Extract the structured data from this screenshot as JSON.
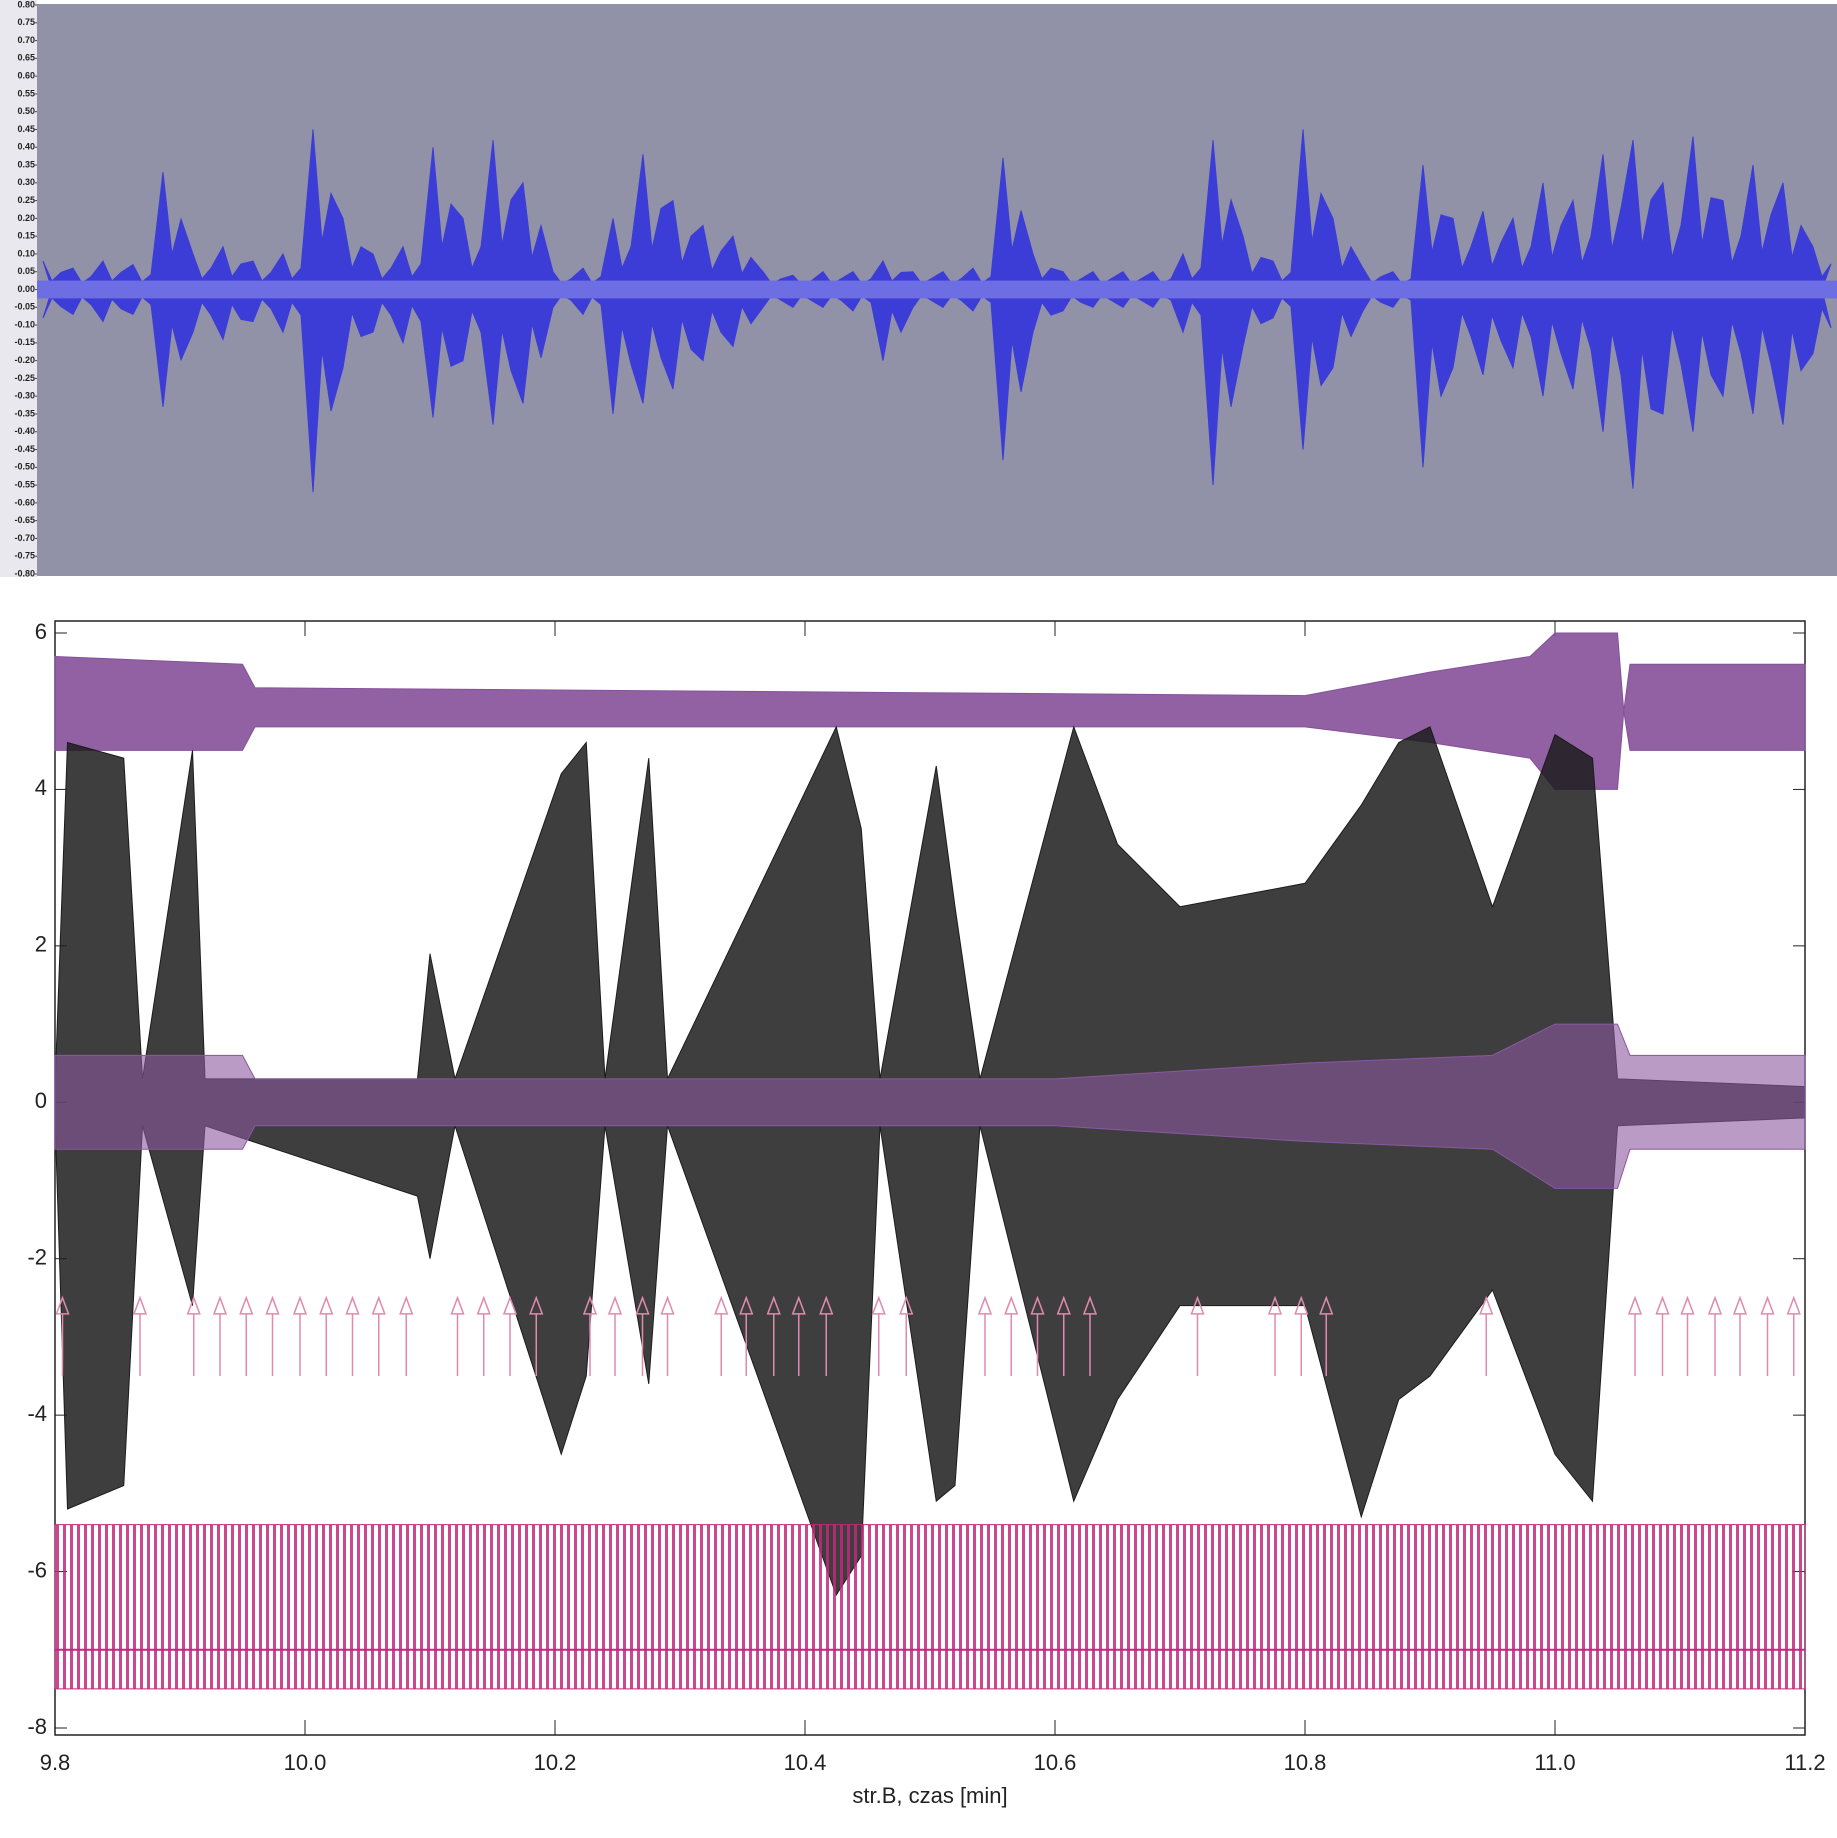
{
  "chart_data": [
    {
      "type": "waveform",
      "ylim": [
        -0.8,
        0.8
      ],
      "yticks": [
        {
          "value": 0.8,
          "label": "0.80"
        },
        {
          "value": 0.75,
          "label": "0.75"
        },
        {
          "value": 0.7,
          "label": "0.70"
        },
        {
          "value": 0.65,
          "label": "0.65"
        },
        {
          "value": 0.6,
          "label": "0.60"
        },
        {
          "value": 0.55,
          "label": "0.55"
        },
        {
          "value": 0.5,
          "label": "0.50"
        },
        {
          "value": 0.45,
          "label": "0.45"
        },
        {
          "value": 0.4,
          "label": "0.40"
        },
        {
          "value": 0.35,
          "label": "0.35"
        },
        {
          "value": 0.3,
          "label": "0.30"
        },
        {
          "value": 0.25,
          "label": "0.25"
        },
        {
          "value": 0.2,
          "label": "0.20"
        },
        {
          "value": 0.15,
          "label": "0.15"
        },
        {
          "value": 0.1,
          "label": "0.10"
        },
        {
          "value": 0.05,
          "label": "0.05"
        },
        {
          "value": 0,
          "label": "0.00"
        },
        {
          "value": -0.05,
          "label": "-0.05"
        },
        {
          "value": -0.1,
          "label": "-0.10"
        },
        {
          "value": -0.15,
          "label": "-0.15"
        },
        {
          "value": -0.2,
          "label": "-0.20"
        },
        {
          "value": -0.25,
          "label": "-0.25"
        },
        {
          "value": -0.3,
          "label": "-0.30"
        },
        {
          "value": -0.35,
          "label": "-0.35"
        },
        {
          "value": -0.4,
          "label": "-0.40"
        },
        {
          "value": -0.45,
          "label": "-0.45"
        },
        {
          "value": -0.5,
          "label": "-0.50"
        },
        {
          "value": -0.55,
          "label": "-0.55"
        },
        {
          "value": -0.6,
          "label": "-0.60"
        },
        {
          "value": -0.65,
          "label": "-0.65"
        },
        {
          "value": -0.7,
          "label": "-0.70"
        },
        {
          "value": -0.75,
          "label": "-0.75"
        },
        {
          "value": -0.8,
          "label": "-0.80"
        }
      ],
      "color": "#3c3cd6",
      "upper": [
        0.08,
        0.06,
        0.08,
        0.07,
        0.33,
        0.1,
        0.12,
        0.08,
        0.1,
        0.45,
        0.2,
        0.1,
        0.12,
        0.4,
        0.2,
        0.42,
        0.3,
        0.05,
        0.06,
        0.2,
        0.38,
        0.25,
        0.18,
        0.15,
        0.05,
        0.04,
        0.05,
        0.05,
        0.08,
        0.05,
        0.05,
        0.06,
        0.37,
        0.1,
        0.05,
        0.05,
        0.05,
        0.05,
        0.1,
        0.42,
        0.15,
        0.08,
        0.45,
        0.2,
        0.06,
        0.05,
        0.35,
        0.2,
        0.22,
        0.2,
        0.3,
        0.25,
        0.38,
        0.42,
        0.3,
        0.43,
        0.25,
        0.35,
        0.3,
        0.12
      ],
      "lower": [
        -0.08,
        -0.07,
        -0.09,
        -0.07,
        -0.33,
        -0.12,
        -0.14,
        -0.09,
        -0.12,
        -0.57,
        -0.22,
        -0.12,
        -0.15,
        -0.36,
        -0.2,
        -0.38,
        -0.32,
        -0.05,
        -0.07,
        -0.35,
        -0.32,
        -0.28,
        -0.2,
        -0.16,
        -0.05,
        -0.05,
        -0.05,
        -0.06,
        -0.2,
        -0.05,
        -0.05,
        -0.06,
        -0.48,
        -0.12,
        -0.06,
        -0.05,
        -0.05,
        -0.05,
        -0.12,
        -0.55,
        -0.16,
        -0.08,
        -0.45,
        -0.22,
        -0.06,
        -0.05,
        -0.5,
        -0.22,
        -0.24,
        -0.22,
        -0.3,
        -0.28,
        -0.4,
        -0.56,
        -0.35,
        -0.4,
        -0.3,
        -0.35,
        -0.38,
        -0.18
      ]
    },
    {
      "type": "traces",
      "xlim": [
        9.8,
        11.2
      ],
      "ylim": [
        -8,
        6
      ],
      "xticks": [
        9.8,
        {
          "value": 10,
          "label": "10.0"
        },
        10.2,
        10.4,
        10.6,
        10.8,
        {
          "value": 11,
          "label": "11.0"
        },
        11.2
      ],
      "yticks": [
        -8,
        -6,
        -4,
        -2,
        0,
        2,
        4,
        6
      ],
      "xlabel": "str.B,  czas [min]",
      "traces": [
        {
          "color": "#86509a",
          "opacity": 0.9,
          "x": [
            9.8,
            9.95,
            9.96,
            10.8,
            10.9,
            10.98,
            11.0,
            11.05,
            11.055,
            11.06,
            11.2
          ],
          "upper": [
            5.7,
            5.6,
            5.3,
            5.2,
            5.5,
            5.7,
            6.0,
            6.0,
            5.0,
            5.6,
            5.6
          ],
          "lower": [
            4.5,
            4.5,
            4.8,
            4.8,
            4.6,
            4.4,
            4.0,
            4.0,
            5.0,
            4.5,
            4.5
          ]
        },
        {
          "color": "#1c1c1c",
          "opacity": 0.85,
          "x": [
            9.8,
            9.81,
            9.855,
            9.87,
            9.91,
            9.92,
            10.09,
            10.1,
            10.12,
            10.205,
            10.225,
            10.24,
            10.275,
            10.29,
            10.425,
            10.445,
            10.46,
            10.505,
            10.52,
            10.54,
            10.615,
            10.65,
            10.7,
            10.8,
            10.845,
            10.875,
            10.9,
            10.95,
            11.0,
            11.03,
            11.05,
            11.2
          ],
          "upper": [
            0.2,
            4.6,
            4.4,
            0.3,
            4.5,
            0.3,
            0.3,
            1.9,
            0.3,
            4.2,
            4.6,
            0.3,
            4.4,
            0.3,
            4.8,
            3.5,
            0.3,
            4.3,
            2.5,
            0.3,
            4.8,
            3.3,
            2.5,
            2.8,
            3.8,
            4.6,
            4.8,
            2.5,
            4.7,
            4.4,
            0.3,
            0.2
          ],
          "lower": [
            -0.2,
            -5.2,
            -4.9,
            -0.3,
            -2.6,
            -0.3,
            -1.2,
            -2.0,
            -0.3,
            -4.5,
            -3.5,
            -0.3,
            -3.6,
            -0.3,
            -6.3,
            -5.8,
            -0.3,
            -5.1,
            -4.9,
            -0.3,
            -5.1,
            -3.8,
            -2.6,
            -2.6,
            -5.3,
            -3.8,
            -3.5,
            -2.4,
            -4.5,
            -5.1,
            -0.3,
            -0.2
          ]
        },
        {
          "color": "#8a58a0",
          "opacity": 0.6,
          "x": [
            9.8,
            9.95,
            9.96,
            10.6,
            10.8,
            10.95,
            11.0,
            11.05,
            11.06,
            11.2
          ],
          "upper": [
            0.6,
            0.6,
            0.3,
            0.3,
            0.5,
            0.6,
            1.0,
            1.0,
            0.6,
            0.6
          ],
          "lower": [
            -0.6,
            -0.6,
            -0.3,
            -0.3,
            -0.5,
            -0.6,
            -1.1,
            -1.1,
            -0.6,
            -0.6
          ]
        },
        {
          "color": "#c2287c",
          "opacity": 0.85,
          "striped": true,
          "x": [
            9.8,
            11.2
          ],
          "upper": [
            -5.4,
            -5.4
          ],
          "lower": [
            -7.5,
            -7.5
          ],
          "baseline": -7
        }
      ],
      "arrows": {
        "color": "#e08aae",
        "from": -3.5,
        "to": -2.5,
        "x": [
          9.806,
          9.868,
          9.911,
          9.932,
          9.953,
          9.974,
          9.996,
          10.017,
          10.038,
          10.059,
          10.081,
          10.122,
          10.143,
          10.164,
          10.185,
          10.228,
          10.248,
          10.27,
          10.29,
          10.333,
          10.353,
          10.375,
          10.395,
          10.417,
          10.459,
          10.481,
          10.544,
          10.565,
          10.586,
          10.607,
          10.628,
          10.714,
          10.776,
          10.797,
          10.817,
          10.945,
          11.064,
          11.086,
          11.106,
          11.128,
          11.148,
          11.17,
          11.191
        ]
      }
    }
  ]
}
